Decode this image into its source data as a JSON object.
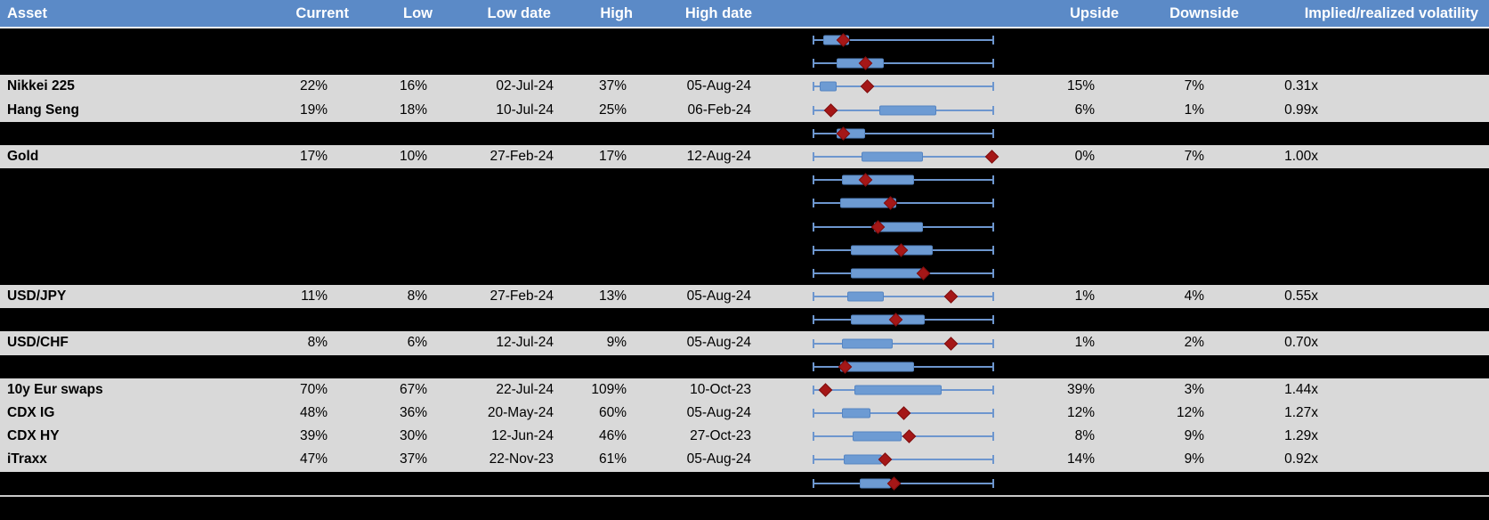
{
  "header": {
    "asset": "Asset",
    "current": "Current",
    "low": "Low",
    "low_date": "Low date",
    "high": "High",
    "high_date": "High date",
    "upside": "Upside",
    "downside": "Downside",
    "vol": "Implied/realized volatility"
  },
  "colors": {
    "header_bg": "#5b8ac7",
    "row_light": "#d9d9d9",
    "row_dark": "#000000",
    "range_box_blue": "#6d9bd3",
    "whisker_blue": "#6d96ce",
    "current_marker_red": "#a51717"
  },
  "chart_data": {
    "type": "table",
    "columns": [
      "Asset",
      "Current",
      "Low",
      "Low date",
      "High",
      "High date",
      "Upside",
      "Downside",
      "Implied/realized volatility"
    ],
    "range_plot_note": "Each row shows a min-to-max whisker (normalized 0-1), a blue inner-range box (box_start/box_end) and a red diamond marker at the current level (marker).",
    "rows": [
      {
        "asset": "",
        "row_style": "dark",
        "range_plot": {
          "box_start": 0.06,
          "box_end": 0.2,
          "marker": 0.17
        }
      },
      {
        "asset": "",
        "row_style": "dark",
        "range_plot": {
          "box_start": 0.13,
          "box_end": 0.39,
          "marker": 0.29
        }
      },
      {
        "asset": "Nikkei 225",
        "current": "22%",
        "low": "16%",
        "low_date": "02-Jul-24",
        "high": "37%",
        "high_date": "05-Aug-24",
        "upside": "15%",
        "downside": "7%",
        "vol": "0.31x",
        "row_style": "light",
        "range_plot": {
          "box_start": 0.04,
          "box_end": 0.13,
          "marker": 0.3
        }
      },
      {
        "asset": "Hang Seng",
        "current": "19%",
        "low": "18%",
        "low_date": "10-Jul-24",
        "high": "25%",
        "high_date": "06-Feb-24",
        "upside": "6%",
        "downside": "1%",
        "vol": "0.99x",
        "row_style": "light",
        "range_plot": {
          "box_start": 0.37,
          "box_end": 0.68,
          "marker": 0.1
        }
      },
      {
        "asset": "",
        "row_style": "dark",
        "range_plot": {
          "box_start": 0.13,
          "box_end": 0.29,
          "marker": 0.17
        }
      },
      {
        "asset": "Gold",
        "current": "17%",
        "low": "10%",
        "low_date": "27-Feb-24",
        "high": "17%",
        "high_date": "12-Aug-24",
        "upside": "0%",
        "downside": "7%",
        "vol": "1.00x",
        "row_style": "light",
        "range_plot": {
          "box_start": 0.27,
          "box_end": 0.61,
          "marker": 0.99
        }
      },
      {
        "asset": "",
        "row_style": "dark",
        "range_plot": {
          "box_start": 0.16,
          "box_end": 0.56,
          "marker": 0.29
        }
      },
      {
        "asset": "",
        "row_style": "dark",
        "range_plot": {
          "box_start": 0.15,
          "box_end": 0.46,
          "marker": 0.43
        }
      },
      {
        "asset": "",
        "row_style": "dark",
        "range_plot": {
          "box_start": 0.34,
          "box_end": 0.61,
          "marker": 0.36
        }
      },
      {
        "asset": "",
        "row_style": "dark",
        "range_plot": {
          "box_start": 0.21,
          "box_end": 0.66,
          "marker": 0.49
        }
      },
      {
        "asset": "",
        "row_style": "dark",
        "range_plot": {
          "box_start": 0.21,
          "box_end": 0.61,
          "marker": 0.61
        }
      },
      {
        "asset": "USD/JPY",
        "current": "11%",
        "low": "8%",
        "low_date": "27-Feb-24",
        "high": "13%",
        "high_date": "05-Aug-24",
        "upside": "1%",
        "downside": "4%",
        "vol": "0.55x",
        "row_style": "light",
        "range_plot": {
          "box_start": 0.19,
          "box_end": 0.39,
          "marker": 0.76
        }
      },
      {
        "asset": "",
        "row_style": "dark",
        "range_plot": {
          "box_start": 0.21,
          "box_end": 0.62,
          "marker": 0.46
        }
      },
      {
        "asset": "USD/CHF",
        "current": "8%",
        "low": "6%",
        "low_date": "12-Jul-24",
        "high": "9%",
        "high_date": "05-Aug-24",
        "upside": "1%",
        "downside": "2%",
        "vol": "0.70x",
        "row_style": "light",
        "range_plot": {
          "box_start": 0.16,
          "box_end": 0.44,
          "marker": 0.76
        }
      },
      {
        "asset": "",
        "row_style": "dark",
        "range_plot": {
          "box_start": 0.15,
          "box_end": 0.56,
          "marker": 0.18
        }
      },
      {
        "asset": "10y Eur swaps",
        "current": "70%",
        "low": "67%",
        "low_date": "22-Jul-24",
        "high": "109%",
        "high_date": "10-Oct-23",
        "upside": "39%",
        "downside": "3%",
        "vol": "1.44x",
        "row_style": "light",
        "range_plot": {
          "box_start": 0.23,
          "box_end": 0.71,
          "marker": 0.07
        }
      },
      {
        "asset": "CDX IG",
        "current": "48%",
        "low": "36%",
        "low_date": "20-May-24",
        "high": "60%",
        "high_date": "05-Aug-24",
        "upside": "12%",
        "downside": "12%",
        "vol": "1.27x",
        "row_style": "light",
        "range_plot": {
          "box_start": 0.16,
          "box_end": 0.32,
          "marker": 0.5
        }
      },
      {
        "asset": "CDX HY",
        "current": "39%",
        "low": "30%",
        "low_date": "12-Jun-24",
        "high": "46%",
        "high_date": "27-Oct-23",
        "upside": "8%",
        "downside": "9%",
        "vol": "1.29x",
        "row_style": "light",
        "range_plot": {
          "box_start": 0.22,
          "box_end": 0.49,
          "marker": 0.53
        }
      },
      {
        "asset": "iTraxx",
        "current": "47%",
        "low": "37%",
        "low_date": "22-Nov-23",
        "high": "61%",
        "high_date": "05-Aug-24",
        "upside": "14%",
        "downside": "9%",
        "vol": "0.92x",
        "row_style": "light",
        "range_plot": {
          "box_start": 0.17,
          "box_end": 0.38,
          "marker": 0.4
        }
      },
      {
        "asset": "",
        "row_style": "dark",
        "range_plot": {
          "box_start": 0.26,
          "box_end": 0.43,
          "marker": 0.45
        }
      }
    ]
  }
}
